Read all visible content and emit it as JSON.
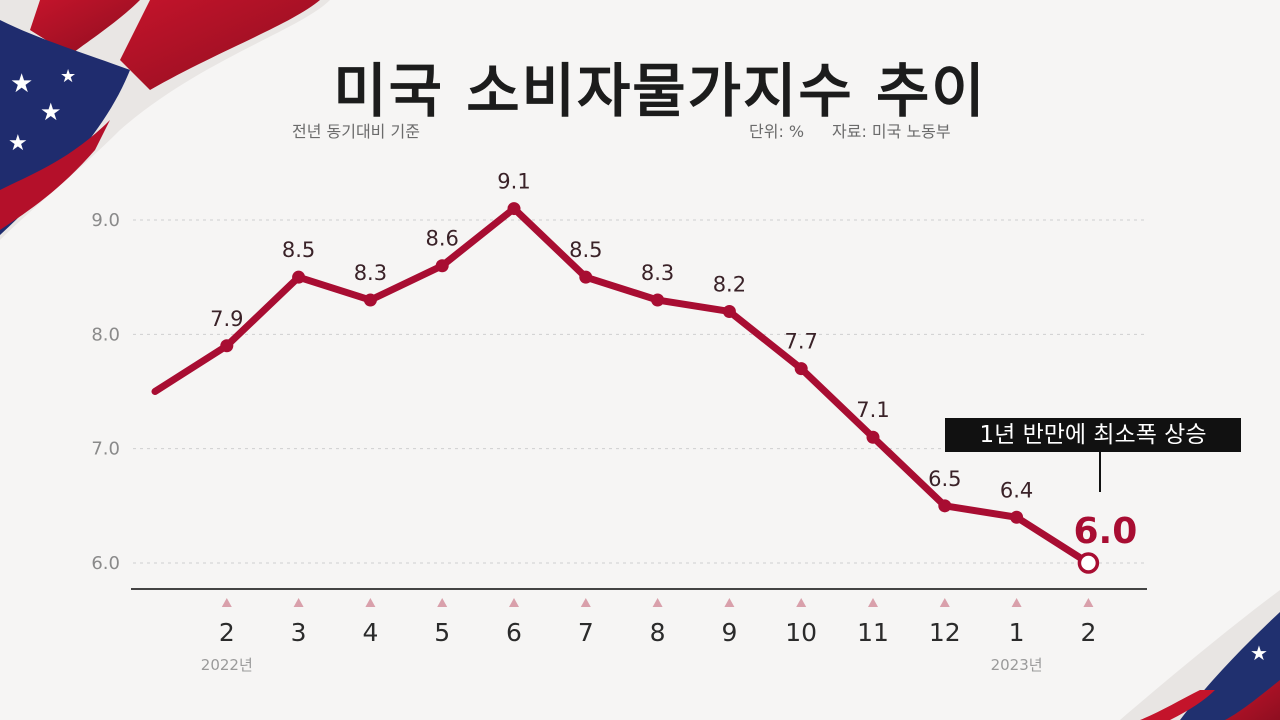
{
  "header": {
    "title": "미국 소비자물가지수 추이",
    "subtitle": "전년 동기대비 기준",
    "unit": "단위: %",
    "source": "자료: 미국 노동부"
  },
  "callout": "1년 반만에 최소폭 상승",
  "colors": {
    "line": "#a80d32",
    "marker_triangle": "#d9a0ab",
    "axis": "#444444",
    "grid": "#cfcfcf"
  },
  "chart_data": {
    "type": "line",
    "title": "미국 소비자물가지수 추이",
    "categories": [
      "",
      "2",
      "3",
      "4",
      "5",
      "6",
      "7",
      "8",
      "9",
      "10",
      "11",
      "12",
      "1",
      "2"
    ],
    "year_labels": [
      {
        "index": 1,
        "label": "2022년"
      },
      {
        "index": 12,
        "label": "2023년"
      }
    ],
    "series": [
      {
        "values": [
          7.5,
          7.9,
          8.5,
          8.3,
          8.6,
          9.1,
          8.5,
          8.3,
          8.2,
          7.7,
          7.1,
          6.5,
          6.4,
          6.0
        ],
        "labels": [
          "",
          "7.9",
          "8.5",
          "8.3",
          "8.6",
          "9.1",
          "8.5",
          "8.3",
          "8.2",
          "7.7",
          "7.1",
          "6.5",
          "6.4",
          "6.0"
        ]
      }
    ],
    "yticks": [
      "6.0",
      "7.0",
      "8.0",
      "9.0"
    ],
    "ylim": [
      6.0,
      9.0
    ],
    "grid": true,
    "highlight_index": 13
  }
}
